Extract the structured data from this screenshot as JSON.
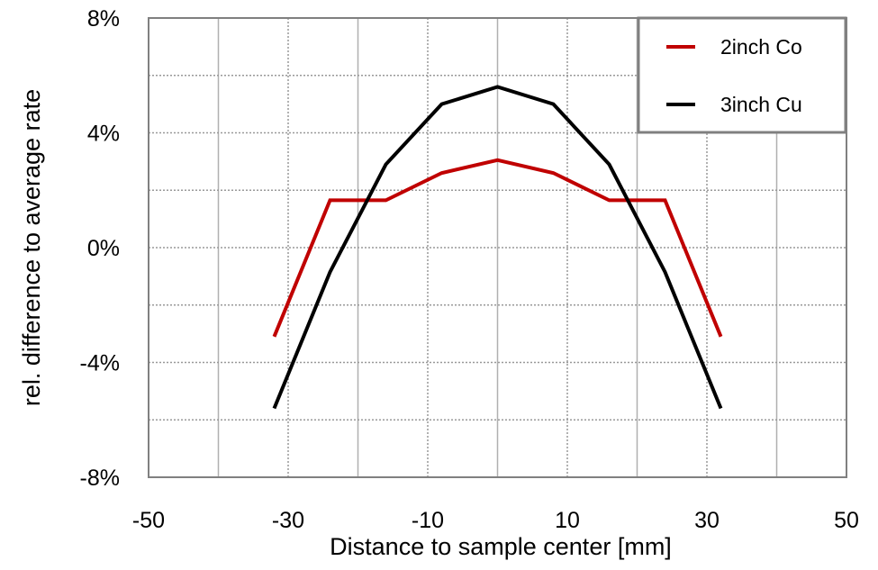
{
  "chart_data": {
    "type": "line",
    "title": "",
    "xlabel": "Distance to sample center [mm]",
    "ylabel": "rel. difference to average rate",
    "xlim": [
      -50,
      50
    ],
    "ylim": [
      -8,
      8
    ],
    "xticks": [
      -50,
      -30,
      -10,
      10,
      30,
      50
    ],
    "xtick_labels": [
      "-50",
      "-30",
      "-10",
      "10",
      "30",
      "50"
    ],
    "yticks": [
      -8,
      -4,
      0,
      4,
      8
    ],
    "ytick_labels": [
      "-8%",
      "-4%",
      "0%",
      "4%",
      "8%"
    ],
    "grid": true,
    "legend_position": "top-right",
    "x": [
      -32,
      -24,
      -16,
      -8,
      0,
      8,
      16,
      24,
      32
    ],
    "series": [
      {
        "name": "2inch Co",
        "color": "#c00000",
        "values": [
          -3.1,
          1.65,
          1.65,
          2.6,
          3.05,
          2.6,
          1.65,
          1.65,
          -3.1
        ]
      },
      {
        "name": "3inch Cu",
        "color": "#000000",
        "values": [
          -5.6,
          -0.85,
          2.9,
          5.0,
          5.6,
          5.0,
          2.9,
          -0.85,
          -5.6
        ]
      }
    ]
  }
}
